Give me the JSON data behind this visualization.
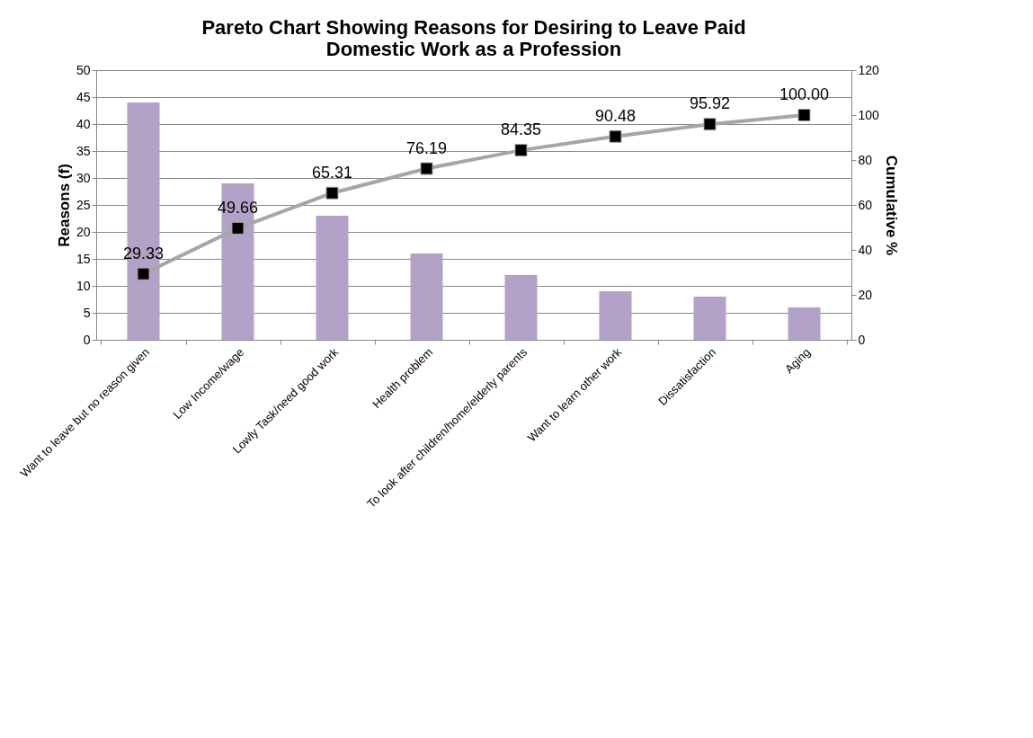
{
  "chart_data": {
    "type": "bar",
    "title": "Pareto Chart Showing Reasons for Desiring to Leave Paid Domestic Work as a Profession",
    "ylabel": "Reasons (f)",
    "y2label": "Cumulative %",
    "categories": [
      "Want to leave but no reason given",
      "Low Income/wage",
      "Lowly Task/need good work",
      "Health problem",
      "To look after children/home/elderly parents",
      "Want to learn other work",
      "Dissatisfaction",
      "Aging"
    ],
    "series": [
      {
        "color": "#b3a2c7",
        "values": [
          44,
          29,
          23,
          16,
          12,
          9,
          8,
          6
        ]
      },
      {
        "type": "line",
        "axis": "y2",
        "color": "#a6a6a6",
        "values": [
          29.33,
          49.66,
          65.31,
          76.19,
          84.35,
          90.48,
          95.92,
          100.0
        ],
        "value_labels": [
          "29.33",
          "49.66",
          "65.31",
          "76.19",
          "84.35",
          "90.48",
          "95.92",
          "100.00"
        ]
      }
    ],
    "ylim": [
      0,
      50
    ],
    "yticks": [
      0,
      5,
      10,
      15,
      20,
      25,
      30,
      35,
      40,
      45,
      50
    ],
    "y2lim": [
      0,
      120
    ],
    "y2ticks": [
      0,
      20,
      40,
      60,
      80,
      100,
      120
    ],
    "grid": "y",
    "marker": "square",
    "line_style": "solid"
  }
}
